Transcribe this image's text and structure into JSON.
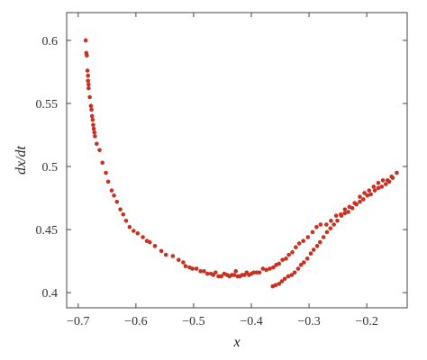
{
  "chart_data": {
    "type": "scatter",
    "xlabel": "x",
    "ylabel": "dx/dt",
    "xlim": [
      -0.72,
      -0.13
    ],
    "ylim": [
      0.388,
      0.622
    ],
    "xticks": [
      -0.7,
      -0.6,
      -0.5,
      -0.4,
      -0.3,
      -0.2
    ],
    "xtick_labels": [
      "−0.7",
      "−0.6",
      "−0.5",
      "−0.4",
      "−0.3",
      "−0.2"
    ],
    "yticks": [
      0.4,
      0.45,
      0.5,
      0.55,
      0.6
    ],
    "ytick_labels": [
      "0.4",
      "0.45",
      "0.5",
      "0.55",
      "0.6"
    ],
    "grid": false,
    "marker_color": "#c9301f",
    "axis_color": "#444444",
    "series": [
      {
        "points": [
          [
            -0.687,
            0.6
          ],
          [
            -0.686,
            0.59
          ],
          [
            -0.685,
            0.588
          ],
          [
            -0.684,
            0.576
          ],
          [
            -0.683,
            0.572
          ],
          [
            -0.683,
            0.568
          ],
          [
            -0.682,
            0.565
          ],
          [
            -0.682,
            0.562
          ],
          [
            -0.68,
            0.555
          ],
          [
            -0.678,
            0.548
          ],
          [
            -0.677,
            0.545
          ],
          [
            -0.676,
            0.54
          ],
          [
            -0.675,
            0.537
          ],
          [
            -0.674,
            0.533
          ],
          [
            -0.673,
            0.53
          ],
          [
            -0.672,
            0.527
          ],
          [
            -0.671,
            0.524
          ],
          [
            -0.668,
            0.518
          ],
          [
            -0.663,
            0.513
          ],
          [
            -0.658,
            0.503
          ],
          [
            -0.652,
            0.495
          ],
          [
            -0.648,
            0.488
          ],
          [
            -0.642,
            0.481
          ],
          [
            -0.638,
            0.477
          ],
          [
            -0.633,
            0.472
          ],
          [
            -0.627,
            0.466
          ],
          [
            -0.622,
            0.462
          ],
          [
            -0.617,
            0.457
          ],
          [
            -0.611,
            0.452
          ],
          [
            -0.604,
            0.449
          ],
          [
            -0.597,
            0.447
          ],
          [
            -0.588,
            0.444
          ],
          [
            -0.581,
            0.441
          ],
          [
            -0.576,
            0.44
          ],
          [
            -0.567,
            0.437
          ],
          [
            -0.556,
            0.433
          ],
          [
            -0.548,
            0.43
          ],
          [
            -0.536,
            0.429
          ],
          [
            -0.526,
            0.426
          ],
          [
            -0.518,
            0.424
          ],
          [
            -0.514,
            0.421
          ],
          [
            -0.507,
            0.42
          ],
          [
            -0.502,
            0.419
          ],
          [
            -0.495,
            0.419
          ],
          [
            -0.488,
            0.417
          ],
          [
            -0.482,
            0.417
          ],
          [
            -0.476,
            0.415
          ],
          [
            -0.47,
            0.415
          ],
          [
            -0.466,
            0.414
          ],
          [
            -0.462,
            0.416
          ],
          [
            -0.457,
            0.413
          ],
          [
            -0.452,
            0.413
          ],
          [
            -0.447,
            0.415
          ],
          [
            -0.442,
            0.414
          ],
          [
            -0.438,
            0.413
          ],
          [
            -0.434,
            0.414
          ],
          [
            -0.43,
            0.414
          ],
          [
            -0.427,
            0.417
          ],
          [
            -0.424,
            0.413
          ],
          [
            -0.42,
            0.413
          ],
          [
            -0.416,
            0.414
          ],
          [
            -0.412,
            0.414
          ],
          [
            -0.408,
            0.416
          ],
          [
            -0.404,
            0.414
          ],
          [
            -0.4,
            0.415
          ],
          [
            -0.396,
            0.416
          ],
          [
            -0.391,
            0.416
          ],
          [
            -0.386,
            0.416
          ],
          [
            -0.38,
            0.419
          ],
          [
            -0.374,
            0.418
          ],
          [
            -0.368,
            0.419
          ],
          [
            -0.362,
            0.42
          ],
          [
            -0.357,
            0.422
          ],
          [
            -0.352,
            0.423
          ],
          [
            -0.346,
            0.426
          ],
          [
            -0.34,
            0.427
          ],
          [
            -0.335,
            0.43
          ],
          [
            -0.329,
            0.432
          ],
          [
            -0.323,
            0.436
          ],
          [
            -0.317,
            0.439
          ],
          [
            -0.31,
            0.441
          ],
          [
            -0.302,
            0.444
          ],
          [
            -0.294,
            0.448
          ],
          [
            -0.287,
            0.452
          ],
          [
            -0.28,
            0.454
          ],
          [
            -0.27,
            0.454
          ],
          [
            -0.262,
            0.457
          ],
          [
            -0.253,
            0.461
          ],
          [
            -0.245,
            0.462
          ],
          [
            -0.238,
            0.466
          ],
          [
            -0.23,
            0.468
          ],
          [
            -0.221,
            0.471
          ],
          [
            -0.212,
            0.476
          ],
          [
            -0.204,
            0.479
          ],
          [
            -0.196,
            0.481
          ],
          [
            -0.188,
            0.484
          ],
          [
            -0.18,
            0.487
          ],
          [
            -0.172,
            0.489
          ],
          [
            -0.164,
            0.489
          ],
          [
            -0.157,
            0.492
          ],
          [
            -0.148,
            0.495
          ],
          [
            -0.363,
            0.405
          ],
          [
            -0.358,
            0.406
          ],
          [
            -0.352,
            0.407
          ],
          [
            -0.347,
            0.409
          ],
          [
            -0.342,
            0.411
          ],
          [
            -0.336,
            0.413
          ],
          [
            -0.33,
            0.414
          ],
          [
            -0.325,
            0.416
          ],
          [
            -0.319,
            0.419
          ],
          [
            -0.314,
            0.422
          ],
          [
            -0.309,
            0.424
          ],
          [
            -0.303,
            0.427
          ],
          [
            -0.297,
            0.431
          ],
          [
            -0.292,
            0.434
          ],
          [
            -0.286,
            0.437
          ],
          [
            -0.281,
            0.44
          ],
          [
            -0.275,
            0.444
          ],
          [
            -0.269,
            0.448
          ],
          [
            -0.263,
            0.451
          ],
          [
            -0.257,
            0.454
          ],
          [
            -0.251,
            0.457
          ],
          [
            -0.244,
            0.461
          ],
          [
            -0.238,
            0.463
          ],
          [
            -0.232,
            0.464
          ],
          [
            -0.225,
            0.467
          ],
          [
            -0.218,
            0.47
          ],
          [
            -0.212,
            0.472
          ],
          [
            -0.206,
            0.474
          ],
          [
            -0.199,
            0.477
          ],
          [
            -0.193,
            0.478
          ],
          [
            -0.186,
            0.481
          ],
          [
            -0.18,
            0.483
          ],
          [
            -0.174,
            0.484
          ],
          [
            -0.167,
            0.486
          ],
          [
            -0.161,
            0.488
          ],
          [
            -0.155,
            0.491
          ]
        ]
      }
    ]
  }
}
